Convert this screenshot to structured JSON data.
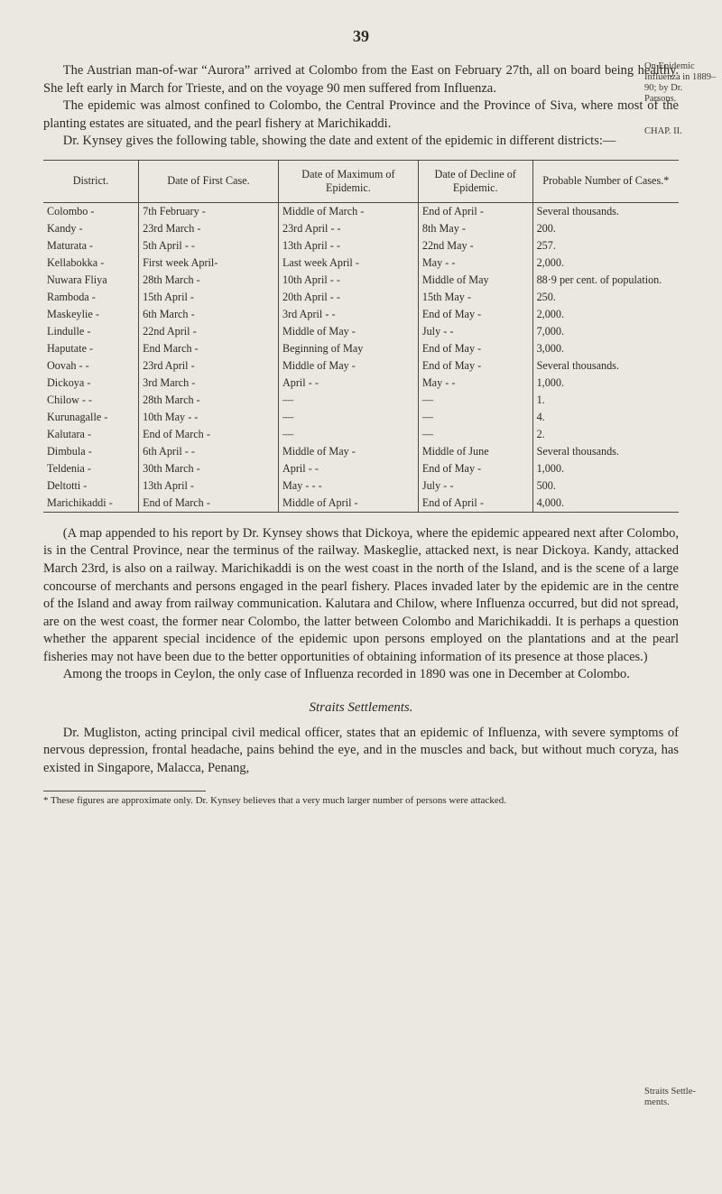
{
  "page_number": "39",
  "margin_notes": {
    "n1": "On Epidemic Influenza in 1889–90; by Dr. Parsons.",
    "n2": "CHAP. II.",
    "n3": "Straits Settle-\nments."
  },
  "para1": "The Austrian man-of-war “Aurora” arrived at Colombo from the East on February 27th, all on board being healthy. She left early in March for Trieste, and on the voyage 90 men suffered from Influenza.",
  "para2": "The epidemic was almost confined to Colombo, the Central Province and the Province of Siva, where most of the planting estates are situated, and the pearl fishery at Marichikaddi.",
  "para3": "Dr. Kynsey gives the following table, showing the date and extent of the epidemic in different districts:—",
  "table": {
    "columns": [
      "District.",
      "Date of First Case.",
      "Date of Maximum of Epidemic.",
      "Date of Decline of Epidemic.",
      "Probable Number of Cases.*"
    ],
    "rows": [
      [
        "Colombo    -",
        "7th February   -",
        "Middle of March  -",
        "End of April  -",
        "Several thousands."
      ],
      [
        "Kandy      -",
        "23rd March     -",
        "23rd April -     -",
        "8th May       -",
        "200."
      ],
      [
        "Maturata   -",
        "5th April -    -",
        "13th April -     -",
        "22nd May      -",
        "257."
      ],
      [
        "Kellabokka -",
        "First week April-",
        "Last week April  -",
        "May   -       -",
        "2,000."
      ],
      [
        "Nuwara Fliya",
        "28th March     -",
        "10th April -     -",
        "Middle of May",
        "88·9 per cent. of population."
      ],
      [
        "Ramboda    -",
        "15th April     -",
        "20th April -     -",
        "15th May      -",
        "250."
      ],
      [
        "Maskeylie  -",
        "6th March      -",
        "3rd April  -     -",
        "End of May    -",
        "2,000."
      ],
      [
        "Lindulle   -",
        "22nd April     -",
        "Middle of May    -",
        "July  -       -",
        "7,000."
      ],
      [
        "Haputate   -",
        "End March      -",
        "Beginning of May",
        "End of May    -",
        "3,000."
      ],
      [
        "Oovah -    -",
        "23rd April     -",
        "Middle of May    -",
        "End of May    -",
        "Several thousands."
      ],
      [
        "Dickoya    -",
        "3rd March      -",
        "April      -     -",
        "May   -       -",
        "1,000."
      ],
      [
        "Chilow -   -",
        "28th March     -",
        "        —",
        "        —",
        "1."
      ],
      [
        "Kurunagalle -",
        "10th May -     -",
        "        —",
        "        —",
        "4."
      ],
      [
        "Kalutara   -",
        "End of March   -",
        "        —",
        "        —",
        "2."
      ],
      [
        "Dimbula    -",
        "6th April -    -",
        "Middle of May    -",
        "Middle of June",
        "Several thousands."
      ],
      [
        "Teldenia   -",
        "30th March     -",
        "April      -     -",
        "End of May    -",
        "1,000."
      ],
      [
        "Deltotti   -",
        "13th April     -",
        "May -      -     -",
        "July  -       -",
        "500."
      ],
      [
        "Marichikaddi -",
        "End of March   -",
        "Middle of April  -",
        "End of April  -",
        "4,000."
      ]
    ]
  },
  "para4": "(A map appended to his report by Dr. Kynsey shows that Dickoya, where the epidemic appeared next after Colombo, is in the Central Province, near the terminus of the railway. Maskeglie, attacked next, is near Dickoya. Kandy, attacked March 23rd, is also on a railway. Marichikaddi is on the west coast in the north of the Island, and is the scene of a large concourse of merchants and persons engaged in the pearl fishery. Places invaded later by the epidemic are in the centre of the Island and away from railway communication. Kalutara and Chilow, where Influenza occurred, but did not spread, are on the west coast, the former near Colombo, the latter between Colombo and Marichikaddi. It is perhaps a question whether the apparent special incidence of the epidemic upon persons employed on the plantations and at the pearl fisheries may not have been due to the better opportunities of obtaining information of its presence at those places.)",
  "para5": "Among the troops in Ceylon, the only case of Influenza recorded in 1890 was one in December at Colombo.",
  "section_heading": "Straits Settlements.",
  "para6": "Dr. Mugliston, acting principal civil medical officer, states that an epidemic of Influenza, with severe symptoms of nervous depression, frontal headache, pains behind the eye, and in the muscles and back, but without much coryza, has existed in Singapore, Malacca, Penang,",
  "footnote": "* These figures are approximate only. Dr. Kynsey believes that a very much larger number of persons were attacked."
}
